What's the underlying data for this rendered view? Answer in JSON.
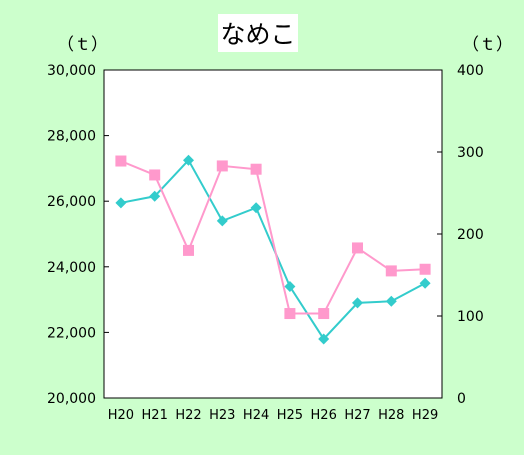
{
  "chart_data": {
    "type": "line",
    "title": "なめこ",
    "left_unit": "（ｔ）",
    "right_unit": "（ｔ）",
    "categories": [
      "H20",
      "H21",
      "H22",
      "H23",
      "H24",
      "H25",
      "H26",
      "H27",
      "H28",
      "H29"
    ],
    "left_axis": {
      "ylim": [
        20000,
        30000
      ],
      "ticks": [
        "20,000",
        "22,000",
        "24,000",
        "26,000",
        "28,000",
        "30,000"
      ],
      "tick_values": [
        20000,
        22000,
        24000,
        26000,
        28000,
        30000
      ]
    },
    "right_axis": {
      "ylim": [
        0,
        400
      ],
      "ticks": [
        "0",
        "100",
        "200",
        "300",
        "400"
      ],
      "tick_values": [
        0,
        100,
        200,
        300,
        400
      ]
    },
    "series": [
      {
        "axis": "left",
        "marker": "diamond",
        "color": "#33cccc",
        "values": [
          25950,
          26150,
          27250,
          25400,
          25800,
          23400,
          21800,
          22900,
          22950,
          23500
        ]
      },
      {
        "axis": "right",
        "marker": "square",
        "color": "#ff99cc",
        "values": [
          289,
          272,
          180,
          283,
          279,
          103,
          103,
          183,
          155,
          157
        ]
      }
    ],
    "grid": false
  }
}
